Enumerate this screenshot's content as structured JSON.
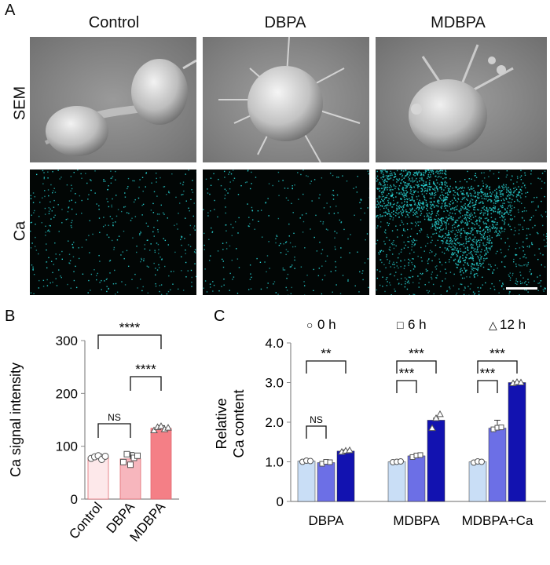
{
  "panel_a": {
    "letter": "A",
    "columns": [
      "Control",
      "DBPA",
      "MDBPA"
    ],
    "rows": [
      "SEM",
      "Ca"
    ],
    "sem_color": "#8a8a8a",
    "ca_color": "#29d6d6"
  },
  "chart_data": [
    {
      "type": "bar",
      "panel": "B",
      "categories": [
        "Control",
        "DBPA",
        "MDBPA"
      ],
      "values": [
        79,
        76,
        134
      ],
      "errors": [
        6,
        12,
        5
      ],
      "points": [
        [
          77,
          80,
          82,
          75,
          81
        ],
        [
          70,
          85,
          65,
          78,
          82
        ],
        [
          130,
          136,
          138,
          132,
          135
        ]
      ],
      "colors": [
        "#fde8ea",
        "#f7b6bd",
        "#f47f86"
      ],
      "ylabel": "Ca signal intensity",
      "ylim": [
        0,
        300
      ],
      "yticks": [
        0,
        100,
        200,
        300
      ],
      "significance": [
        {
          "from": 1,
          "to": 2,
          "label": "****"
        },
        {
          "from": 0,
          "to": 2,
          "label": "****"
        },
        {
          "from": 0,
          "to": 1,
          "label": "NS"
        }
      ]
    },
    {
      "type": "bar",
      "panel": "C",
      "groups": [
        "DBPA",
        "MDBPA",
        "MDBPA+Ca"
      ],
      "series": [
        {
          "name": "0 h",
          "marker": "○",
          "color": "#c9def6",
          "values": [
            1.02,
            1.0,
            1.0
          ],
          "points": [
            [
              1.0,
              1.03,
              1.02
            ],
            [
              0.99,
              1.0,
              1.01
            ],
            [
              0.98,
              1.01,
              1.0
            ]
          ]
        },
        {
          "name": "6 h",
          "marker": "□",
          "color": "#6c6fe6",
          "values": [
            0.98,
            1.15,
            1.85
          ],
          "points": [
            [
              0.95,
              1.0,
              0.99
            ],
            [
              1.12,
              1.16,
              1.17
            ],
            [
              1.82,
              1.86,
              1.87
            ]
          ]
        },
        {
          "name": "12 h",
          "marker": "△",
          "color": "#1212b0",
          "values": [
            1.27,
            2.05,
            3.0
          ],
          "points": [
            [
              1.25,
              1.28,
              1.29
            ],
            [
              1.85,
              2.1,
              2.2
            ],
            [
              2.98,
              3.01,
              3.0
            ]
          ]
        }
      ],
      "errors": [
        [
          0.03,
          0.04,
          0.03
        ],
        [
          0.02,
          0.03,
          0.05
        ],
        [
          0.02,
          0.2,
          0.02
        ]
      ],
      "ylabel_lines": [
        "Relative",
        "Ca content"
      ],
      "ylim": [
        0,
        4.0
      ],
      "yticks": [
        "0",
        "1.0",
        "2.0",
        "3.0",
        "4.0"
      ],
      "significance": [
        {
          "group": 0,
          "from": 0,
          "to": 1,
          "label": "NS"
        },
        {
          "group": 0,
          "from": 0,
          "to": 2,
          "label": "**"
        },
        {
          "group": 1,
          "from": 0,
          "to": 1,
          "label": "***"
        },
        {
          "group": 1,
          "from": 0,
          "to": 2,
          "label": "***"
        },
        {
          "group": 2,
          "from": 0,
          "to": 1,
          "label": "***"
        },
        {
          "group": 2,
          "from": 0,
          "to": 2,
          "label": "***"
        }
      ]
    }
  ]
}
